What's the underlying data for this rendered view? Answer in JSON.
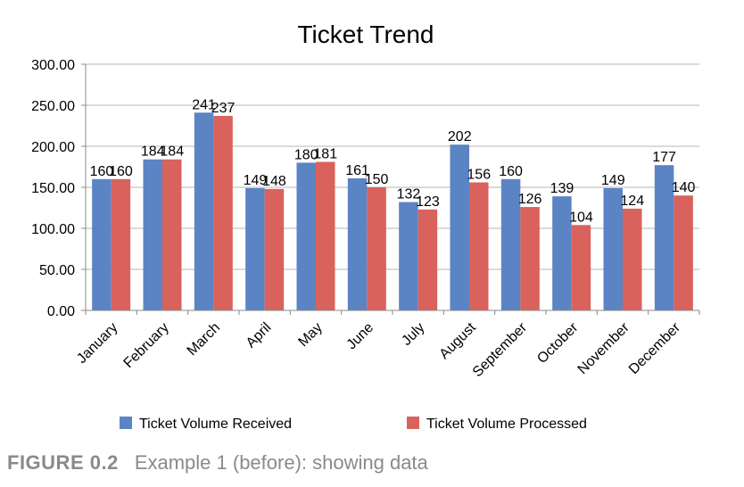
{
  "chart_data": {
    "type": "bar",
    "title": "Ticket Trend",
    "xlabel": "",
    "ylabel": "",
    "ylim": [
      0,
      300
    ],
    "yticks": [
      "0.00",
      "50.00",
      "100.00",
      "150.00",
      "200.00",
      "250.00",
      "300.00"
    ],
    "grid": true,
    "legend_position": "bottom",
    "categories": [
      "January",
      "February",
      "March",
      "April",
      "May",
      "June",
      "July",
      "August",
      "September",
      "October",
      "November",
      "December"
    ],
    "series": [
      {
        "name": "Ticket Volume Received",
        "color": "#5b84c4",
        "values": [
          160,
          184,
          241,
          149,
          180,
          161,
          132,
          202,
          160,
          139,
          149,
          177
        ]
      },
      {
        "name": "Ticket Volume Processed",
        "color": "#d9625c",
        "values": [
          160,
          184,
          237,
          148,
          181,
          150,
          123,
          156,
          126,
          104,
          124,
          140
        ]
      }
    ]
  },
  "caption": {
    "label": "FIGURE 0.2",
    "text": "Example 1 (before): showing data"
  }
}
